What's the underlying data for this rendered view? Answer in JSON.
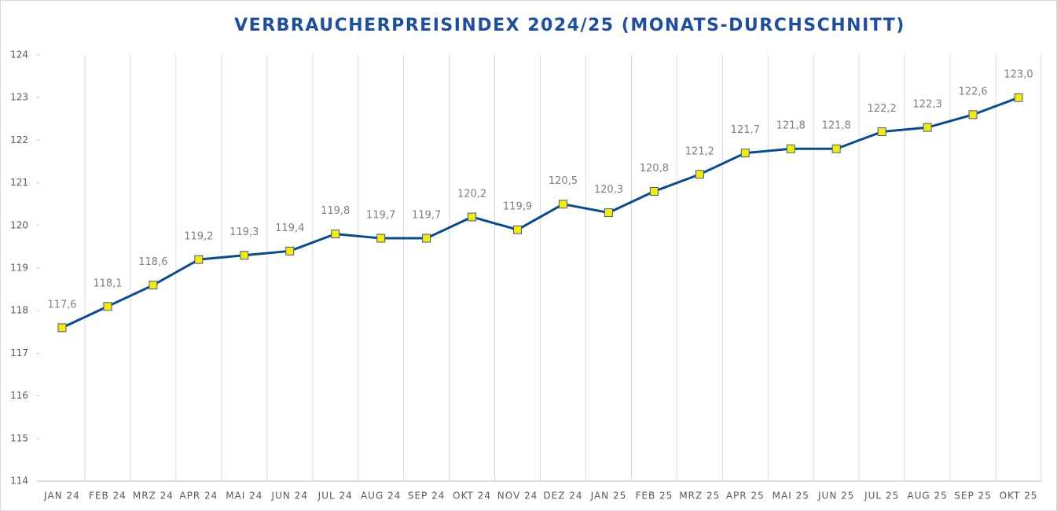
{
  "chart_data": {
    "type": "line",
    "title": "VERBRAUCHERPREISINDEX 2024/25 (MONATS-DURCHSCHNITT)",
    "categories": [
      "JAN 24",
      "FEB 24",
      "MRZ 24",
      "APR 24",
      "MAI 24",
      "JUN 24",
      "JUL 24",
      "AUG 24",
      "SEP 24",
      "OKT 24",
      "NOV 24",
      "DEZ 24",
      "JAN 25",
      "FEB 25",
      "MRZ 25",
      "APR 25",
      "MAI 25",
      "JUN 25",
      "JUL 25",
      "AUG 25",
      "SEP 25",
      "OKT 25"
    ],
    "values": [
      117.6,
      118.1,
      118.6,
      119.2,
      119.3,
      119.4,
      119.8,
      119.7,
      119.7,
      120.2,
      119.9,
      120.5,
      120.3,
      120.8,
      121.2,
      121.7,
      121.8,
      121.8,
      122.2,
      122.3,
      122.6,
      123.0
    ],
    "value_labels": [
      "117,6",
      "118,1",
      "118,6",
      "119,2",
      "119,3",
      "119,4",
      "119,8",
      "119,7",
      "119,7",
      "120,2",
      "119,9",
      "120,5",
      "120,3",
      "120,8",
      "121,2",
      "121,7",
      "121,8",
      "121,8",
      "122,2",
      "122,3",
      "122,6",
      "123,0"
    ],
    "color": "#0b4a8e",
    "marker_color": "#f2ea10",
    "ylim": [
      114,
      124
    ],
    "yticks": [
      114,
      115,
      116,
      117,
      118,
      119,
      120,
      121,
      122,
      123,
      124
    ],
    "grid": true
  }
}
